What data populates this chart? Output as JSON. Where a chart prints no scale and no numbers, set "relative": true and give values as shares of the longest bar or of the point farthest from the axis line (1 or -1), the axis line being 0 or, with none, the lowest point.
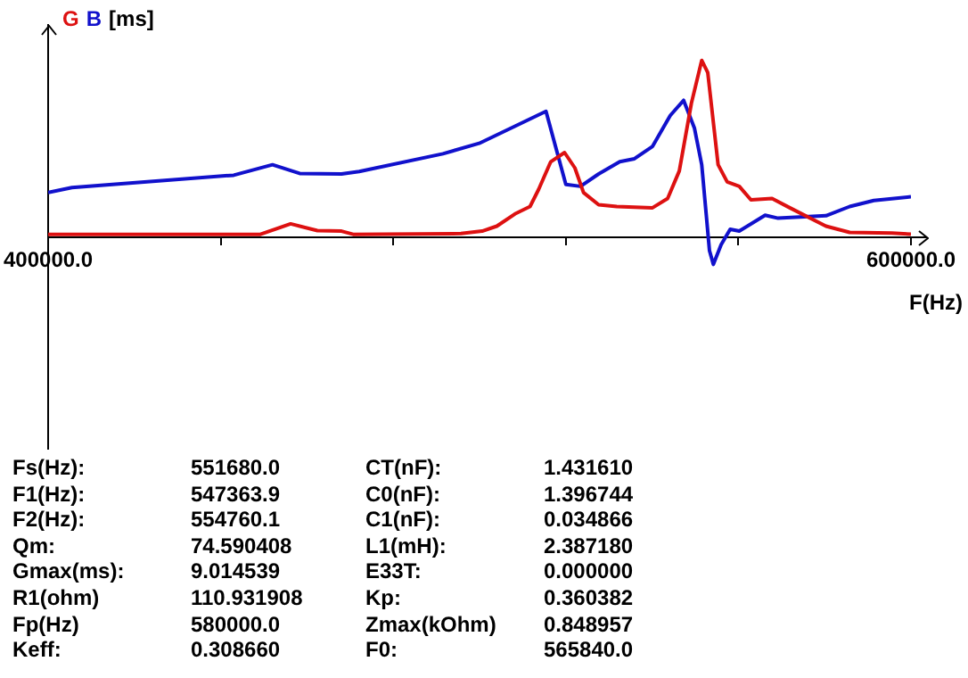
{
  "chart_data": {
    "type": "line",
    "relative": true,
    "ylabel": "[ms]",
    "xlabel": "F(Hz)",
    "legend": "top left",
    "grid": false,
    "marker": "none",
    "line_style": "solid",
    "xlim": [
      400000,
      600000
    ],
    "xticks": [
      {
        "value": 400000,
        "label": "400000.0"
      },
      {
        "value": 440000,
        "label": null
      },
      {
        "value": 480000,
        "label": null
      },
      {
        "value": 520000,
        "label": null
      },
      {
        "value": 560000,
        "label": null
      },
      {
        "value": 600000,
        "label": "600000.0"
      }
    ],
    "series": [
      {
        "name": "G",
        "color": "#dd1111",
        "x": [
          400000,
          449200,
          456200,
          462400,
          468000,
          470700,
          495700,
          500600,
          504000,
          508200,
          511700,
          513700,
          516500,
          519700,
          522100,
          524100,
          527600,
          531800,
          540100,
          543600,
          546300,
          549100,
          551500,
          552900,
          555300,
          557400,
          560200,
          562900,
          567800,
          571900,
          580300,
          585800,
          595600,
          600000
        ],
        "values": [
          0.017,
          0.017,
          0.076,
          0.038,
          0.035,
          0.017,
          0.021,
          0.035,
          0.063,
          0.132,
          0.174,
          0.271,
          0.427,
          0.479,
          0.392,
          0.253,
          0.184,
          0.174,
          0.167,
          0.219,
          0.375,
          0.757,
          1.0,
          0.931,
          0.41,
          0.313,
          0.288,
          0.212,
          0.219,
          0.167,
          0.063,
          0.028,
          0.024,
          0.017
        ]
      },
      {
        "name": "B",
        "color": "#1111cc",
        "x": [
          400000,
          405500,
          443000,
          452000,
          458300,
          468000,
          472100,
          491500,
          499900,
          508200,
          515400,
          517600,
          520000,
          523400,
          527600,
          532500,
          535900,
          540100,
          544200,
          547300,
          549800,
          551500,
          553300,
          554200,
          556000,
          558100,
          560200,
          566200,
          569200,
          580300,
          585800,
          591400,
          600000
        ],
        "values": [
          0.253,
          0.281,
          0.351,
          0.41,
          0.361,
          0.358,
          0.372,
          0.472,
          0.531,
          0.628,
          0.712,
          0.514,
          0.299,
          0.288,
          0.358,
          0.427,
          0.444,
          0.514,
          0.688,
          0.774,
          0.618,
          0.41,
          -0.076,
          -0.153,
          -0.042,
          0.045,
          0.035,
          0.125,
          0.108,
          0.122,
          0.174,
          0.208,
          0.229
        ]
      }
    ],
    "annotations": [
      "Fs(Hz):",
      "551680.0",
      "CT(nF):",
      "1.431610",
      "F1(Hz):",
      "547363.9",
      "C0(nF):",
      "1.396744",
      "F2(Hz):",
      "554760.1",
      "C1(nF):",
      "0.034866",
      "Qm:",
      "74.590408",
      "L1(mH):",
      "2.387180",
      "Gmax(ms):",
      "9.014539",
      "E33T:",
      "0.000000",
      "R1(ohm)",
      "110.931908",
      "Kp:",
      "0.360382",
      "Fp(Hz)",
      "580000.0",
      "Zmax(kOhm)",
      "0.848957",
      "Keff:",
      "0.308660",
      "F0:",
      "565840.0"
    ]
  }
}
